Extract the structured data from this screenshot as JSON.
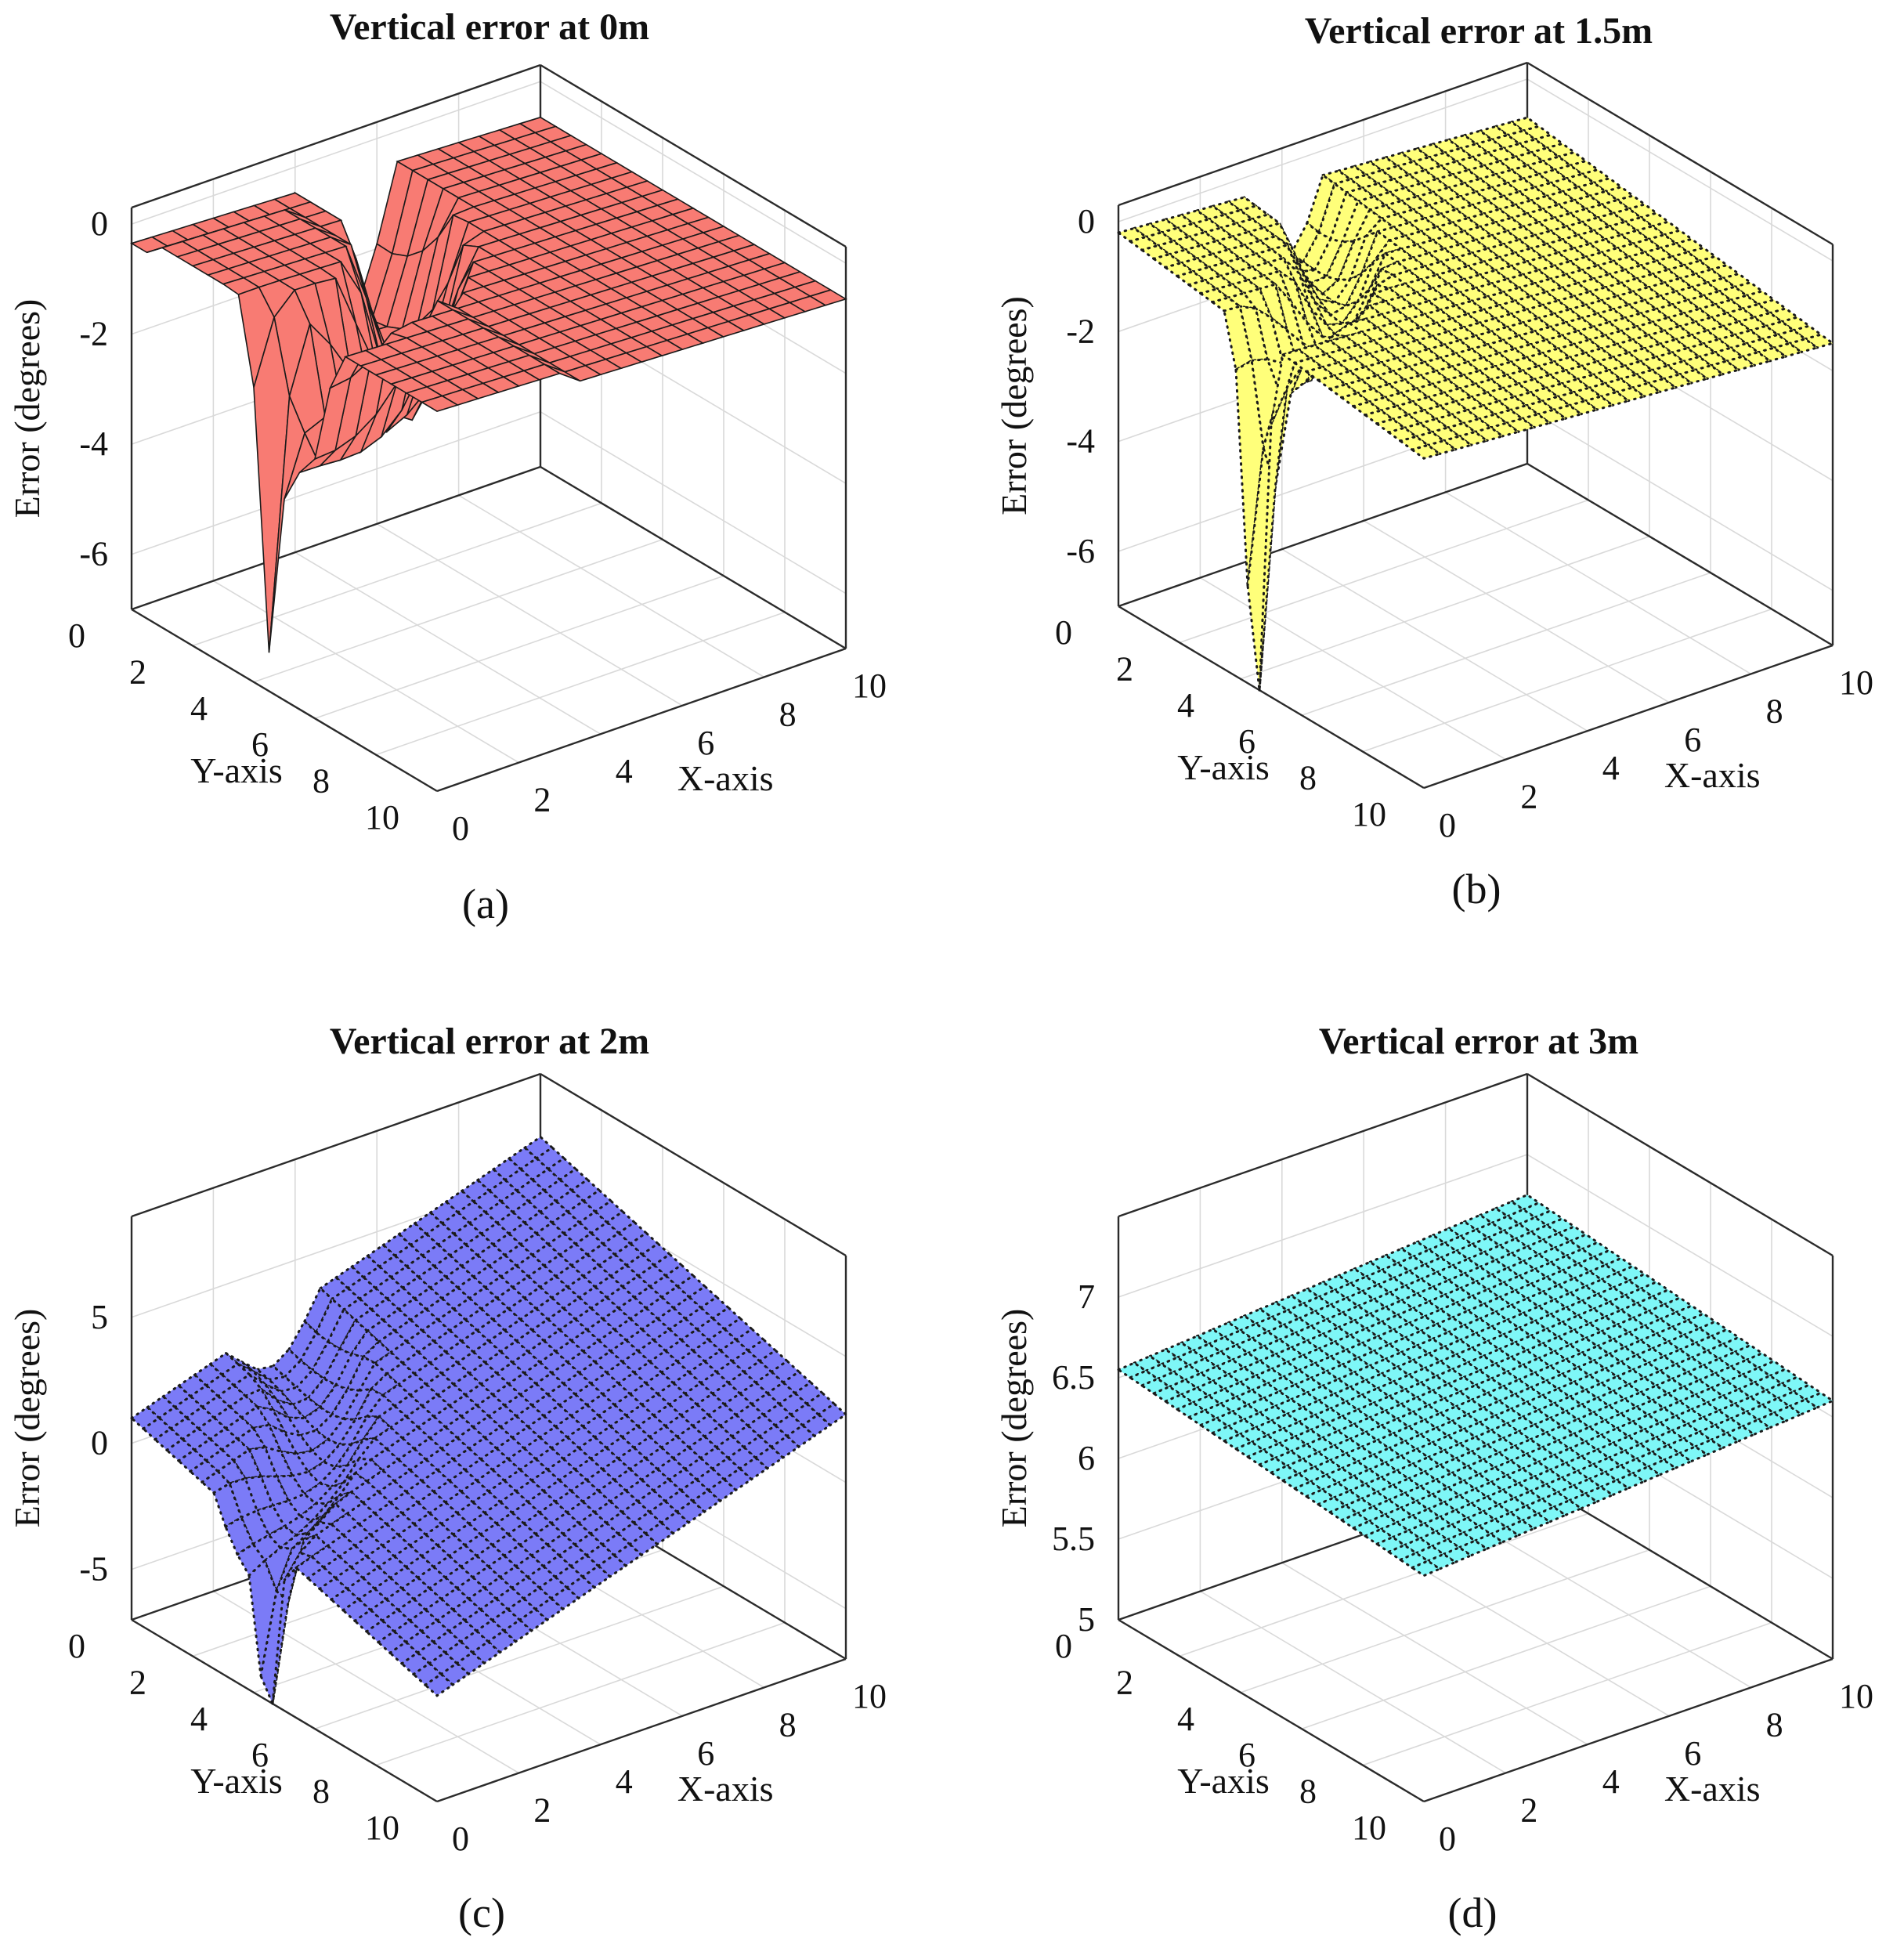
{
  "chart_data": [
    {
      "type": "surface3d",
      "title": "Vertical error at 0m",
      "caption": "(a)",
      "xlabel": "X-axis",
      "ylabel": "Y-axis",
      "zlabel": "Error (degrees)",
      "xlim": [
        0,
        10
      ],
      "ylim": [
        0,
        10
      ],
      "zlim": [
        -7,
        0.3
      ],
      "xticks": [
        "0",
        "2",
        "4",
        "6",
        "8",
        "10"
      ],
      "yticks": [
        "0",
        "2",
        "4",
        "6",
        "8",
        "10"
      ],
      "zticks": [
        0,
        -2,
        -4,
        -6
      ],
      "ztick_labels": [
        "0",
        "-2",
        "-4",
        "-6"
      ],
      "face_color": "#f87b73",
      "edge_style": "solid",
      "depth_m": 0,
      "depth_offset": 0
    },
    {
      "type": "surface3d",
      "title": "Vertical error at 1.5m",
      "caption": "(b)",
      "xlabel": "X-axis",
      "ylabel": "Y-axis",
      "zlabel": "Error (degrees)",
      "xlim": [
        0,
        10
      ],
      "ylim": [
        0,
        10
      ],
      "zlim": [
        -7,
        0.3
      ],
      "xticks": [
        "0",
        "2",
        "4",
        "6",
        "8",
        "10"
      ],
      "yticks": [
        "0",
        "2",
        "4",
        "6",
        "8",
        "10"
      ],
      "zticks": [
        0,
        -2,
        -4,
        -6
      ],
      "ztick_labels": [
        "0",
        "-2",
        "-4",
        "-6"
      ],
      "face_color": "#ffff7a",
      "edge_style": "dotted",
      "depth_m": 1.5,
      "depth_offset": 0.45
    },
    {
      "type": "surface3d",
      "title": "Vertical error at 2m",
      "caption": "(c)",
      "xlabel": "X-axis",
      "ylabel": "Y-axis",
      "zlabel": "Error (degrees)",
      "xlim": [
        0,
        10
      ],
      "ylim": [
        0,
        10
      ],
      "zlim": [
        -7,
        9
      ],
      "xticks": [
        "0",
        "2",
        "4",
        "6",
        "8",
        "10"
      ],
      "yticks": [
        "0",
        "2",
        "4",
        "6",
        "8",
        "10"
      ],
      "zticks": [
        5,
        0,
        -5
      ],
      "ztick_labels": [
        "5",
        "0",
        "-5"
      ],
      "face_color": "#7b7bf7",
      "edge_style": "dotted",
      "depth_m": 2,
      "depth_offset": 4.0
    },
    {
      "type": "surface3d",
      "title": "Vertical error at 3m",
      "caption": "(d)",
      "xlabel": "X-axis",
      "ylabel": "Y-axis",
      "zlabel": "Error (degrees)",
      "xlim": [
        0,
        10
      ],
      "ylim": [
        0,
        10
      ],
      "zlim": [
        5,
        7.5
      ],
      "xticks": [
        "0",
        "2",
        "4",
        "6",
        "8",
        "10"
      ],
      "yticks": [
        "0",
        "2",
        "4",
        "6",
        "8",
        "10"
      ],
      "zticks": [
        7,
        6.5,
        6,
        5.5,
        5
      ],
      "ztick_labels": [
        "7",
        "6.5",
        "6",
        "5.5",
        "5"
      ],
      "face_color": "#7ef7f7",
      "edge_style": "dotted",
      "depth_m": 3,
      "depth_offset": 6.4
    }
  ]
}
